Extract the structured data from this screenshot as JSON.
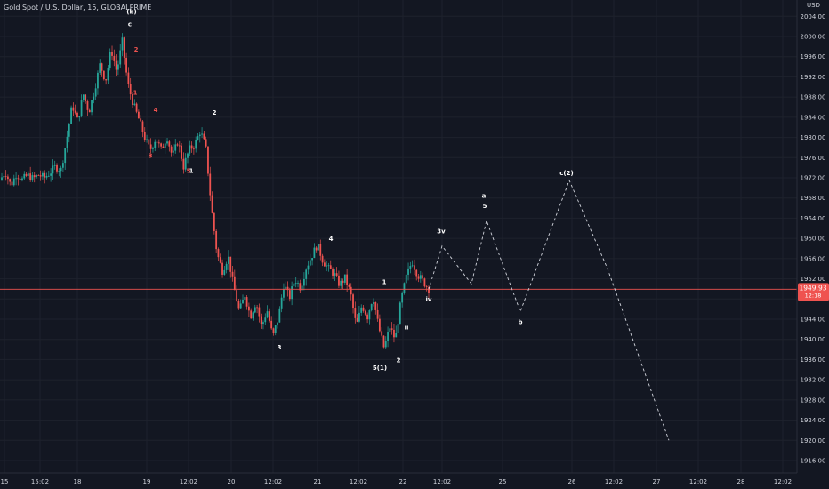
{
  "header": {
    "title": "Gold Spot / U.S. Dollar, 15, GLOBALPRIME",
    "currency": "USD"
  },
  "price_axis": {
    "ticks": [
      "2004.00",
      "2000.00",
      "1996.00",
      "1992.00",
      "1988.00",
      "1984.00",
      "1980.00",
      "1976.00",
      "1972.00",
      "1968.00",
      "1964.00",
      "1960.00",
      "1956.00",
      "1952.00",
      "1948.00",
      "1944.00",
      "1940.00",
      "1936.00",
      "1932.00",
      "1928.00",
      "1924.00",
      "1920.00",
      "1916.00"
    ],
    "current_price": "1949.93",
    "countdown": "12:18"
  },
  "time_axis": {
    "ticks": [
      "15",
      "15:02",
      "18",
      "19",
      "12:02",
      "20",
      "12:02",
      "21",
      "12:02",
      "22",
      "12:02",
      "25",
      "26",
      "12:02",
      "27",
      "12:02",
      "28",
      "12:02"
    ]
  },
  "colors": {
    "background": "#131722",
    "up": "#26a69a",
    "down": "#ef5350",
    "grid": "#1e222d",
    "text": "#d1d4dc",
    "red_label": "#ef5350"
  },
  "chart_data": {
    "type": "candlestick",
    "title": "Gold Spot / U.S. Dollar, 15, GLOBALPRIME",
    "ylim": [
      1915,
      2006
    ],
    "grid": true,
    "price_path": [
      [
        "15",
        1971.5
      ],
      [
        "15",
        1973.2
      ],
      [
        "15",
        1970.5
      ],
      [
        "15",
        1972.8
      ],
      [
        "15",
        1971.6
      ],
      [
        "15",
        1972.5
      ],
      [
        "15:02",
        1971.8
      ],
      [
        "15:02",
        1972.6
      ],
      [
        "15:02",
        1972.0
      ],
      [
        "15:02",
        1973.0
      ],
      [
        "15:02",
        1974.2
      ],
      [
        "15:02",
        1973.6
      ],
      [
        "18",
        1979.5
      ],
      [
        "18",
        1986.5
      ],
      [
        "18",
        1983.2
      ],
      [
        "18",
        1988.6
      ],
      [
        "18",
        1985.0
      ],
      [
        "18",
        1989.3
      ],
      [
        "18",
        1994.5
      ],
      [
        "18",
        1991.2
      ],
      [
        "18",
        1997.5
      ],
      [
        "18",
        1993.0
      ],
      [
        "19",
        1999.0
      ],
      [
        "19",
        1990.5
      ],
      [
        "19",
        1986.5
      ],
      [
        "19",
        1983.5
      ],
      [
        "19",
        1980.0
      ],
      [
        "19",
        1977.5
      ],
      [
        "19",
        1979.8
      ],
      [
        "19",
        1977.5
      ],
      [
        "19",
        1980.2
      ],
      [
        "19",
        1976.2
      ],
      [
        "12:02",
        1979.4
      ],
      [
        "12:02",
        1974.2
      ],
      [
        "12:02",
        1977.6
      ],
      [
        "12:02",
        1978.5
      ],
      [
        "12:02",
        1981.3
      ],
      [
        "12:02",
        1978.0
      ],
      [
        "20",
        1966.0
      ],
      [
        "20",
        1957.0
      ],
      [
        "20",
        1953.5
      ],
      [
        "20",
        1956.5
      ],
      [
        "20",
        1950.5
      ],
      [
        "20",
        1945.5
      ],
      [
        "20",
        1948.8
      ],
      [
        "20",
        1944.5
      ],
      [
        "12:02",
        1947.5
      ],
      [
        "12:02",
        1942.5
      ],
      [
        "12:02",
        1945.8
      ],
      [
        "12:02",
        1940.5
      ],
      [
        "12:02",
        1944.2
      ],
      [
        "12:02",
        1951.0
      ],
      [
        "12:02",
        1948.2
      ],
      [
        "21",
        1952.0
      ],
      [
        "21",
        1950.2
      ],
      [
        "21",
        1954.2
      ],
      [
        "21",
        1956.5
      ],
      [
        "21",
        1958.8
      ],
      [
        "21",
        1955.6
      ],
      [
        "12:02",
        1954.0
      ],
      [
        "12:02",
        1953.0
      ],
      [
        "12:02",
        1950.8
      ],
      [
        "12:02",
        1952.2
      ],
      [
        "12:02",
        1949.0
      ],
      [
        "12:02",
        1942.5
      ],
      [
        "12:02",
        1946.8
      ],
      [
        "22",
        1944.5
      ],
      [
        "22",
        1948.6
      ],
      [
        "22",
        1942.5
      ],
      [
        "22",
        1938.2
      ],
      [
        "22",
        1942.5
      ],
      [
        "22",
        1940.0
      ],
      [
        "22",
        1947.5
      ],
      [
        "22",
        1952.5
      ],
      [
        "22",
        1955.5
      ],
      [
        "12:02",
        1952.8
      ],
      [
        "12:02",
        1951.5
      ],
      [
        "12:02",
        1949.93
      ]
    ],
    "projection": [
      [
        "12:02",
        1949.93
      ],
      [
        "12:02",
        1958.5
      ],
      [
        "25",
        1951.0
      ],
      [
        "25",
        1963.5
      ],
      [
        "26",
        1945.5
      ],
      [
        "26",
        1971.5
      ],
      [
        "12:02",
        1954.0
      ],
      [
        "12:02",
        1920.0
      ]
    ],
    "wave_labels": [
      {
        "text": "(b)",
        "x": "19",
        "y": 2004.5,
        "color": "white"
      },
      {
        "text": "c",
        "x": "19",
        "y": 2002.0,
        "color": "white"
      },
      {
        "text": "2",
        "x": "19",
        "y": 1997.0,
        "color": "red"
      },
      {
        "text": "1",
        "x": "19",
        "y": 1988.5,
        "color": "red"
      },
      {
        "text": "4",
        "x": "19",
        "y": 1985.0,
        "color": "red"
      },
      {
        "text": "3",
        "x": "19",
        "y": 1976.0,
        "color": "red"
      },
      {
        "text": "5",
        "x": "12:02",
        "y": 1973.0,
        "color": "red"
      },
      {
        "text": "1",
        "x": "12:02",
        "y": 1973.0,
        "color": "white"
      },
      {
        "text": "2",
        "x": "12:02",
        "y": 1984.5,
        "color": "white"
      },
      {
        "text": "3",
        "x": "12:02",
        "y": 1938.0,
        "color": "white"
      },
      {
        "text": "4",
        "x": "21",
        "y": 1959.5,
        "color": "white"
      },
      {
        "text": "1",
        "x": "22",
        "y": 1951.0,
        "color": "white"
      },
      {
        "text": "ii",
        "x": "22",
        "y": 1942.0,
        "color": "white"
      },
      {
        "text": "2",
        "x": "22",
        "y": 1935.5,
        "color": "white"
      },
      {
        "text": "5(1)",
        "x": "22",
        "y": 1934.0,
        "color": "white"
      },
      {
        "text": "iv",
        "x": "12:02",
        "y": 1947.5,
        "color": "white"
      },
      {
        "text": "3v",
        "x": "12:02",
        "y": 1961.0,
        "color": "white"
      },
      {
        "text": "a",
        "x": "25",
        "y": 1968.0,
        "color": "white"
      },
      {
        "text": "5",
        "x": "25",
        "y": 1966.0,
        "color": "white"
      },
      {
        "text": "b",
        "x": "26",
        "y": 1943.0,
        "color": "white"
      },
      {
        "text": "c(2)",
        "x": "26",
        "y": 1972.5,
        "color": "white"
      }
    ]
  }
}
